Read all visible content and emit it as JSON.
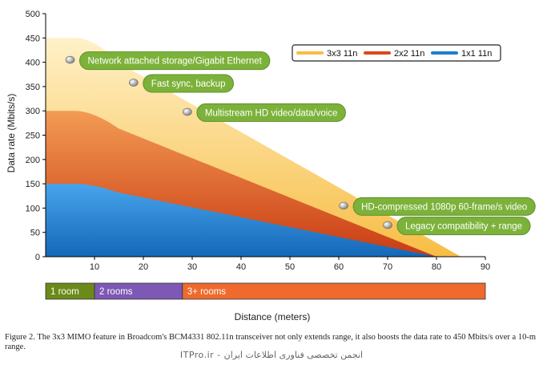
{
  "chart_data": {
    "type": "area",
    "title": "",
    "xlabel": "Distance (meters)",
    "ylabel": "Data rate (Mbits/s)",
    "xlim": [
      0,
      90
    ],
    "ylim": [
      0,
      500
    ],
    "xticks": [
      10,
      20,
      30,
      40,
      50,
      60,
      70,
      80,
      90
    ],
    "yticks": [
      0,
      50,
      100,
      150,
      200,
      250,
      300,
      350,
      400,
      450,
      500
    ],
    "grid": false,
    "legend_position": "top-right",
    "series": [
      {
        "name": "3x3 11n",
        "color": "#f7bd45",
        "x": [
          0,
          6,
          85
        ],
        "y": [
          450,
          450,
          0
        ]
      },
      {
        "name": "2x2 11n",
        "color": "#d94a1c",
        "x": [
          0,
          6,
          80
        ],
        "y": [
          300,
          300,
          0
        ]
      },
      {
        "name": "1x1 11n",
        "color": "#1c7fd0",
        "x": [
          0,
          6,
          80
        ],
        "y": [
          150,
          150,
          0
        ]
      }
    ],
    "annotations": [
      {
        "text": "Network attached storage/Gigabit Ethernet",
        "x": 5,
        "y": 405
      },
      {
        "text": "Fast sync, backup",
        "x": 18,
        "y": 358
      },
      {
        "text": "Multistream HD video/data/voice",
        "x": 29,
        "y": 298
      },
      {
        "text": "HD-compressed 1080p 60-frame/s video",
        "x": 61,
        "y": 105
      },
      {
        "text": "Legacy compatibility + range",
        "x": 70,
        "y": 65
      }
    ],
    "range_bands": [
      {
        "label": "1 room",
        "start": 0,
        "end": 10,
        "color": "#6b8a1a"
      },
      {
        "label": "2 rooms",
        "start": 10,
        "end": 28,
        "color": "#7d58b5"
      },
      {
        "label": "3+ rooms",
        "start": 28,
        "end": 90,
        "color": "#ef6a2c"
      }
    ]
  },
  "caption": "Figure 2. The 3x3 MIMO feature in Broadcom's BCM4331 802.11n transceiver not only extends range, it also boosts the data rate to 450 Mbits/s over a 10-m range.",
  "watermark": "ITPro.ir - انجمن تخصصی فناوری اطلاعات ایران"
}
